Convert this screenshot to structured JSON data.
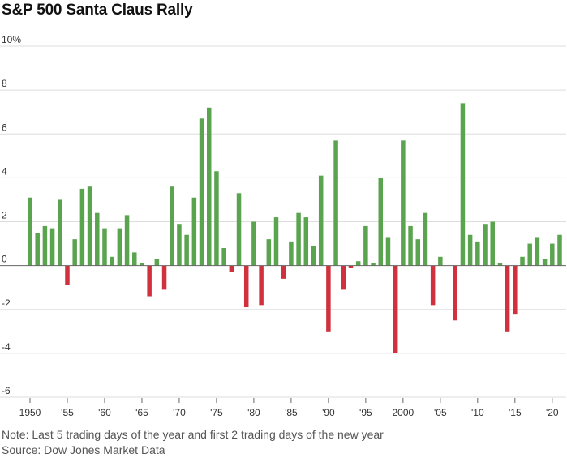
{
  "chart_data": {
    "type": "bar",
    "title": "S&P 500 Santa Claus Rally",
    "ylim": [
      -6,
      10
    ],
    "yticks": [
      -6,
      -4,
      -2,
      0,
      2,
      4,
      6,
      8,
      10
    ],
    "ytick_labels": [
      "-6",
      "-4",
      "-2",
      "0",
      "2",
      "4",
      "6",
      "8",
      "10%"
    ],
    "xtick_labels": [
      "1950",
      "'55",
      "'60",
      "'65",
      "'70",
      "'75",
      "'80",
      "'85",
      "'90",
      "'95",
      "2000",
      "'05",
      "'10",
      "'15",
      "'20"
    ],
    "xtick_years": [
      1950,
      1955,
      1960,
      1965,
      1970,
      1975,
      1980,
      1985,
      1990,
      1995,
      2000,
      2005,
      2010,
      2015,
      2020
    ],
    "grid": true,
    "positive_color": "#5aa44f",
    "negative_color": "#d0313d",
    "years": [
      1950,
      1951,
      1952,
      1953,
      1954,
      1955,
      1956,
      1957,
      1958,
      1959,
      1960,
      1961,
      1962,
      1963,
      1964,
      1965,
      1966,
      1967,
      1968,
      1969,
      1970,
      1971,
      1972,
      1973,
      1974,
      1975,
      1976,
      1977,
      1978,
      1979,
      1980,
      1981,
      1982,
      1983,
      1984,
      1985,
      1986,
      1987,
      1988,
      1989,
      1990,
      1991,
      1992,
      1993,
      1994,
      1995,
      1996,
      1997,
      1998,
      1999,
      2000,
      2001,
      2002,
      2003,
      2004,
      2005,
      2006,
      2007,
      2008,
      2009,
      2010,
      2011,
      2012,
      2013,
      2014,
      2015,
      2016,
      2017,
      2018,
      2019,
      2020,
      2021
    ],
    "values": [
      3.1,
      1.5,
      1.8,
      1.7,
      3.0,
      -0.9,
      1.2,
      3.5,
      3.6,
      2.4,
      1.7,
      0.4,
      1.7,
      2.3,
      0.6,
      0.1,
      -1.4,
      0.3,
      -1.1,
      3.6,
      1.9,
      1.4,
      3.1,
      6.7,
      7.2,
      4.3,
      0.8,
      -0.3,
      3.3,
      -1.9,
      2.0,
      -1.8,
      1.2,
      2.2,
      -0.6,
      1.1,
      2.4,
      2.2,
      0.9,
      4.1,
      -3.0,
      5.7,
      -1.1,
      -0.1,
      0.2,
      1.8,
      0.1,
      4.0,
      1.3,
      -4.0,
      5.7,
      1.8,
      1.2,
      2.4,
      -1.8,
      0.4,
      0.0,
      -2.5,
      7.4,
      1.4,
      1.1,
      1.9,
      2.0,
      0.1,
      -3.0,
      -2.2,
      0.4,
      1.0,
      1.3,
      0.3,
      1.0,
      1.4
    ]
  },
  "notes": {
    "note": "Note: Last 5 trading days of the year and first 2 trading days of the new year",
    "source": "Source: Dow Jones Market Data"
  }
}
